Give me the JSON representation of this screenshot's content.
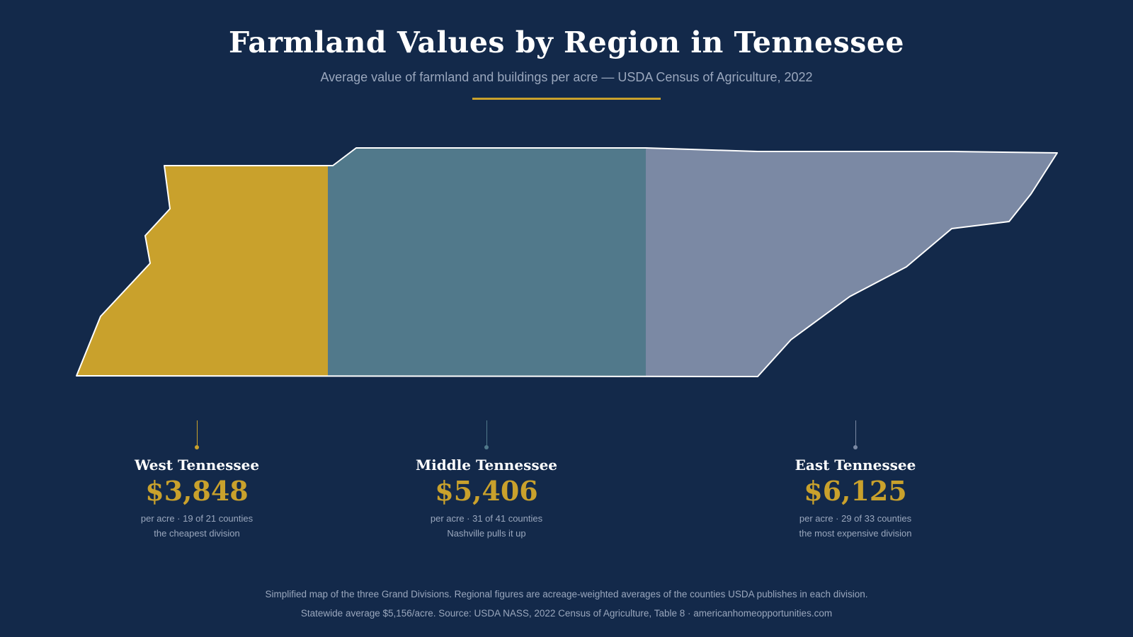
{
  "header": {
    "title": "Farmland Values by Region in Tennessee",
    "subtitle": "Average value of farmland and buildings per acre — USDA Census of Agriculture, 2022"
  },
  "colors": {
    "background": "#13294a",
    "accent": "#c9a12c",
    "west": "#c9a12c",
    "middle": "#51798b",
    "east": "#7b89a4",
    "outline": "#ffffff"
  },
  "regions": [
    {
      "name": "West Tennessee",
      "value": "$3,848",
      "value_per_acre": 3848,
      "detail": "per acre · 19 of 21 counties",
      "note": "the cheapest division"
    },
    {
      "name": "Middle Tennessee",
      "value": "$5,406",
      "value_per_acre": 5406,
      "detail": "per acre · 31 of 41 counties",
      "note": "Nashville pulls it up"
    },
    {
      "name": "East Tennessee",
      "value": "$6,125",
      "value_per_acre": 6125,
      "detail": "per acre · 29 of 33 counties",
      "note": "the most expensive division"
    }
  ],
  "footer": {
    "line1": "Simplified map of the three Grand Divisions. Regional figures are acreage-weighted averages of the counties USDA publishes in each division.",
    "line2": "Statewide average $5,156/acre. Source: USDA NASS, 2022 Census of Agriculture, Table 8 · americanhomeopportunities.com"
  }
}
